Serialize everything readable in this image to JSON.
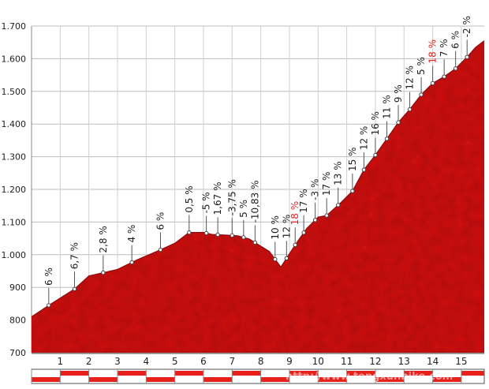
{
  "watermark": "http://www.tengxunbike.com",
  "chart_data": {
    "type": "area",
    "title": "",
    "xlabel": "",
    "ylabel": "",
    "xlim": [
      0,
      15.8
    ],
    "ylim": [
      700,
      1700
    ],
    "y_ticks": [
      {
        "value": 700,
        "label": "700"
      },
      {
        "value": 800,
        "label": "800"
      },
      {
        "value": 900,
        "label": "900"
      },
      {
        "value": 1000,
        "label": "1.000"
      },
      {
        "value": 1100,
        "label": "1.100"
      },
      {
        "value": 1200,
        "label": "1.200"
      },
      {
        "value": 1300,
        "label": "1.300"
      },
      {
        "value": 1400,
        "label": "1.400"
      },
      {
        "value": 1500,
        "label": "1.500"
      },
      {
        "value": 1600,
        "label": "1.600"
      },
      {
        "value": 1700,
        "label": "1.700"
      }
    ],
    "x_ticks": [
      "1",
      "2",
      "3",
      "4",
      "5",
      "6",
      "7",
      "8",
      "9",
      "10",
      "11",
      "12",
      "13",
      "14",
      "15"
    ],
    "grid": true,
    "fill_color": "#cc1518",
    "highlight_color": "#e8201b",
    "profile": {
      "x": [
        0,
        0.6,
        1.5,
        2.0,
        3.0,
        3.7,
        4.5,
        5.0,
        5.5,
        6.0,
        6.3,
        6.8,
        7.2,
        7.6,
        8.3,
        8.7,
        9.2,
        9.6,
        10.0,
        10.3,
        10.8,
        11.2,
        11.6,
        12.0,
        12.4,
        12.8,
        13.2,
        13.6,
        14.0,
        14.4,
        14.8,
        15.2,
        15.5,
        15.8
      ],
      "y": [
        810,
        845,
        895,
        935,
        955,
        985,
        1015,
        1035,
        1068,
        1068,
        1062,
        1060,
        1058,
        1048,
        1010,
        962,
        1030,
        1080,
        1115,
        1120,
        1160,
        1195,
        1260,
        1305,
        1355,
        1405,
        1445,
        1490,
        1525,
        1545,
        1570,
        1605,
        1635,
        1655
      ]
    },
    "segments": [
      {
        "x": 0.6,
        "label": "6 %",
        "steep": false
      },
      {
        "x": 1.5,
        "label": "6,7 %",
        "steep": false
      },
      {
        "x": 2.5,
        "label": "2,8 %",
        "steep": false
      },
      {
        "x": 3.5,
        "label": "4 %",
        "steep": false
      },
      {
        "x": 4.5,
        "label": "6 %",
        "steep": false
      },
      {
        "x": 5.5,
        "label": "0,5 %",
        "steep": false
      },
      {
        "x": 6.1,
        "label": "-5 %",
        "steep": false
      },
      {
        "x": 6.5,
        "label": "1,67 %",
        "steep": false
      },
      {
        "x": 7.0,
        "label": "-3,75 %",
        "steep": false
      },
      {
        "x": 7.4,
        "label": "5 %",
        "steep": false
      },
      {
        "x": 7.8,
        "label": "-10,83 %",
        "steep": false
      },
      {
        "x": 8.5,
        "label": "10 %",
        "steep": false
      },
      {
        "x": 8.9,
        "label": "12 %",
        "steep": false
      },
      {
        "x": 9.2,
        "label": "18 %",
        "steep": true
      },
      {
        "x": 9.5,
        "label": "17 %",
        "steep": false
      },
      {
        "x": 9.9,
        "label": "-3 %",
        "steep": false
      },
      {
        "x": 10.3,
        "label": "17 %",
        "steep": false
      },
      {
        "x": 10.7,
        "label": "13 %",
        "steep": false
      },
      {
        "x": 11.2,
        "label": "15 %",
        "steep": false
      },
      {
        "x": 11.6,
        "label": "12 %",
        "steep": false
      },
      {
        "x": 12.0,
        "label": "16 %",
        "steep": false
      },
      {
        "x": 12.4,
        "label": "11 %",
        "steep": false
      },
      {
        "x": 12.8,
        "label": "9 %",
        "steep": false
      },
      {
        "x": 13.2,
        "label": "12 %",
        "steep": false
      },
      {
        "x": 13.6,
        "label": "5 %",
        "steep": false
      },
      {
        "x": 14.0,
        "label": "18 %",
        "steep": true
      },
      {
        "x": 14.4,
        "label": "7 %",
        "steep": false
      },
      {
        "x": 14.8,
        "label": "6 %",
        "steep": false
      },
      {
        "x": 15.2,
        "label": "-2 %",
        "steep": false
      }
    ]
  }
}
